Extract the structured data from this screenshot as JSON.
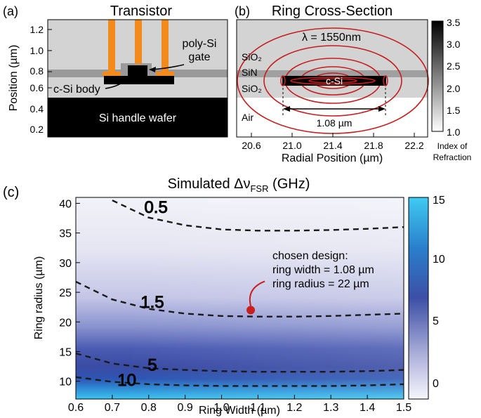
{
  "panel_a": {
    "letter": "(a)",
    "title": "Transistor",
    "ylabel": "Position (µm)",
    "yticks": [
      "1.2",
      "1.0",
      "0.8",
      "0.6",
      "0.4",
      "0.2"
    ],
    "label_poly": "poly-Si",
    "label_gate": "gate",
    "label_body": "c-Si body",
    "label_handle": "Si handle wafer"
  },
  "panel_b": {
    "letter": "(b)",
    "title": "Ring Cross-Section",
    "wavelength": "λ = 1550nm",
    "layer_sio2_top": "SiO₂",
    "layer_sin": "SiN",
    "layer_sio2_bottom": "SiO₂",
    "layer_air": "Air",
    "core_label": "c-Si",
    "width_label": "1.08 µm",
    "xlabel": "Radial Position (µm)",
    "xticks": [
      "20.6",
      "21.0",
      "21.4",
      "21.8",
      "22.2"
    ],
    "colorbar_ticks": [
      "3.5",
      "3.0",
      "2.5",
      "2.0",
      "1.5",
      "1.0"
    ],
    "colorbar_label_1": "Index of",
    "colorbar_label_2": "Refraction"
  },
  "panel_c": {
    "letter": "(c)",
    "title_prefix": "Simulated Δν",
    "title_sub": "FSR",
    "title_suffix": " (GHz)",
    "xlabel": "Ring Width (µm)",
    "ylabel": "Ring radius  (µm)",
    "annotation": [
      "chosen design:",
      "ring width = 1.08 µm",
      "ring radius = 22 µm"
    ],
    "colorbar_ticks": [
      "15",
      "10",
      "5",
      "0"
    ],
    "colors": {
      "low": "#f4f4fb",
      "mid": "#3d52a8",
      "high": "#3bc8f0",
      "marker": "#c81e1e"
    }
  },
  "chart_data": {
    "type": "heatmap",
    "xlabel": "Ring Width (µm)",
    "ylabel": "Ring radius  (µm)",
    "xlim": [
      0.6,
      1.5
    ],
    "ylim": [
      7,
      41
    ],
    "xticks": [
      0.6,
      0.7,
      0.8,
      0.9,
      1.0,
      1.1,
      1.2,
      1.3,
      1.4,
      1.5
    ],
    "yticks": [
      10,
      15,
      20,
      25,
      30,
      35,
      40
    ],
    "colorbar_range": [
      0,
      15
    ],
    "contours": [
      {
        "level": "0.5",
        "x": [
          0.7,
          0.8,
          0.9,
          1.0,
          1.1,
          1.2,
          1.3,
          1.4,
          1.5
        ],
        "y": [
          40.5,
          37.6,
          36.3,
          35.6,
          35.4,
          35.4,
          35.5,
          35.7,
          36.0
        ]
      },
      {
        "level": "1.5",
        "x": [
          0.6,
          0.7,
          0.8,
          0.9,
          1.0,
          1.1,
          1.2,
          1.3,
          1.4,
          1.5
        ],
        "y": [
          26.8,
          23.8,
          22.2,
          21.4,
          21.0,
          20.9,
          20.9,
          21.0,
          21.2,
          21.4
        ]
      },
      {
        "level": "5",
        "x": [
          0.6,
          0.7,
          0.8,
          0.9,
          1.0,
          1.1,
          1.2,
          1.3,
          1.4,
          1.5
        ],
        "y": [
          14.7,
          13.0,
          12.2,
          11.9,
          11.7,
          11.6,
          11.6,
          11.6,
          11.7,
          11.9
        ]
      },
      {
        "level": "10",
        "x": [
          0.6,
          0.7,
          0.8,
          0.9,
          1.0,
          1.1,
          1.2,
          1.3,
          1.4,
          1.5
        ],
        "y": [
          10.7,
          9.9,
          9.5,
          9.3,
          9.2,
          9.2,
          9.2,
          9.2,
          9.3,
          9.5
        ]
      }
    ],
    "chosen_design": {
      "x": 1.08,
      "y": 22
    }
  }
}
